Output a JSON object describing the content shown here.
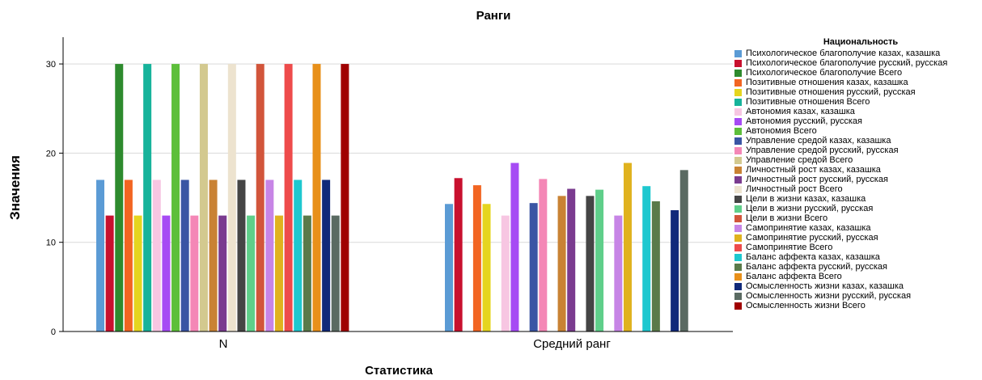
{
  "chart_data": {
    "type": "bar",
    "title": "Ранги",
    "xlabel": "Статистика",
    "ylabel": "Значения",
    "ylim": [
      0,
      33
    ],
    "yticks": [
      0,
      10,
      20,
      30
    ],
    "grid": true,
    "categories": [
      "N",
      "Средний ранг"
    ],
    "legend": {
      "title": "Национальность",
      "position": "right"
    },
    "series": [
      {
        "name": "Психологическое благополучие казах, казашка",
        "color": "#5b9bd5",
        "values": [
          17,
          14.3
        ]
      },
      {
        "name": "Психологическое благополучие русский, русская",
        "color": "#c8102e",
        "values": [
          13,
          17.2
        ]
      },
      {
        "name": "Психологическое благополучие Всего",
        "color": "#2e8b2e",
        "values": [
          30,
          null
        ]
      },
      {
        "name": "Позитивные  отношения казах, казашка",
        "color": "#f26522",
        "values": [
          17,
          16.4
        ]
      },
      {
        "name": "Позитивные  отношения русский, русская",
        "color": "#e5d51f",
        "values": [
          13,
          14.3
        ]
      },
      {
        "name": "Позитивные  отношения Всего",
        "color": "#17b39b",
        "values": [
          30,
          null
        ]
      },
      {
        "name": "Автономия казах, казашка",
        "color": "#f7c6e2",
        "values": [
          17,
          13.0
        ]
      },
      {
        "name": "Автономия русский, русская",
        "color": "#a64bf4",
        "values": [
          13,
          18.9
        ]
      },
      {
        "name": "Автономия Всего",
        "color": "#5dbf3a",
        "values": [
          30,
          null
        ]
      },
      {
        "name": "Управление средой казах, казашка",
        "color": "#3a55a4",
        "values": [
          17,
          14.4
        ]
      },
      {
        "name": "Управление средой русский, русская",
        "color": "#f487b6",
        "values": [
          13,
          17.1
        ]
      },
      {
        "name": "Управление средой Всего",
        "color": "#d3c98f",
        "values": [
          30,
          null
        ]
      },
      {
        "name": "Личностный рост казах, казашка",
        "color": "#c98234",
        "values": [
          17,
          15.2
        ]
      },
      {
        "name": "Личностный рост русский, русская",
        "color": "#7a3b8f",
        "values": [
          13,
          16.0
        ]
      },
      {
        "name": "Личностный рост Всего",
        "color": "#ede3cf",
        "values": [
          30,
          null
        ]
      },
      {
        "name": "Цели в жизни казах, казашка",
        "color": "#454545",
        "values": [
          17,
          15.2
        ]
      },
      {
        "name": "Цели в жизни русский, русская",
        "color": "#5fcf8a",
        "values": [
          13,
          15.9
        ]
      },
      {
        "name": "Цели в жизни Всего",
        "color": "#d2553b",
        "values": [
          30,
          null
        ]
      },
      {
        "name": "Самопринятие казах, казашка",
        "color": "#c785e6",
        "values": [
          17,
          13.0
        ]
      },
      {
        "name": "Самопринятие русский, русская",
        "color": "#e0b21e",
        "values": [
          13,
          18.9
        ]
      },
      {
        "name": "Самопринятие Всего",
        "color": "#ee4b4b",
        "values": [
          30,
          null
        ]
      },
      {
        "name": "Баланс аффекта казах, казашка",
        "color": "#1ec8cf",
        "values": [
          17,
          16.3
        ]
      },
      {
        "name": "Баланс аффекта русский, русская",
        "color": "#5a7a4a",
        "values": [
          13,
          14.6
        ]
      },
      {
        "name": "Баланс аффекта Всего",
        "color": "#e8901a",
        "values": [
          30,
          null
        ]
      },
      {
        "name": "Осмысленность жизни казах, казашка",
        "color": "#10297a",
        "values": [
          17,
          13.6
        ]
      },
      {
        "name": "Осмысленность жизни русский, русская",
        "color": "#5a6a62",
        "values": [
          13,
          18.1
        ]
      },
      {
        "name": "Осмысленность жизни Всего",
        "color": "#a00000",
        "values": [
          30,
          null
        ]
      }
    ]
  }
}
